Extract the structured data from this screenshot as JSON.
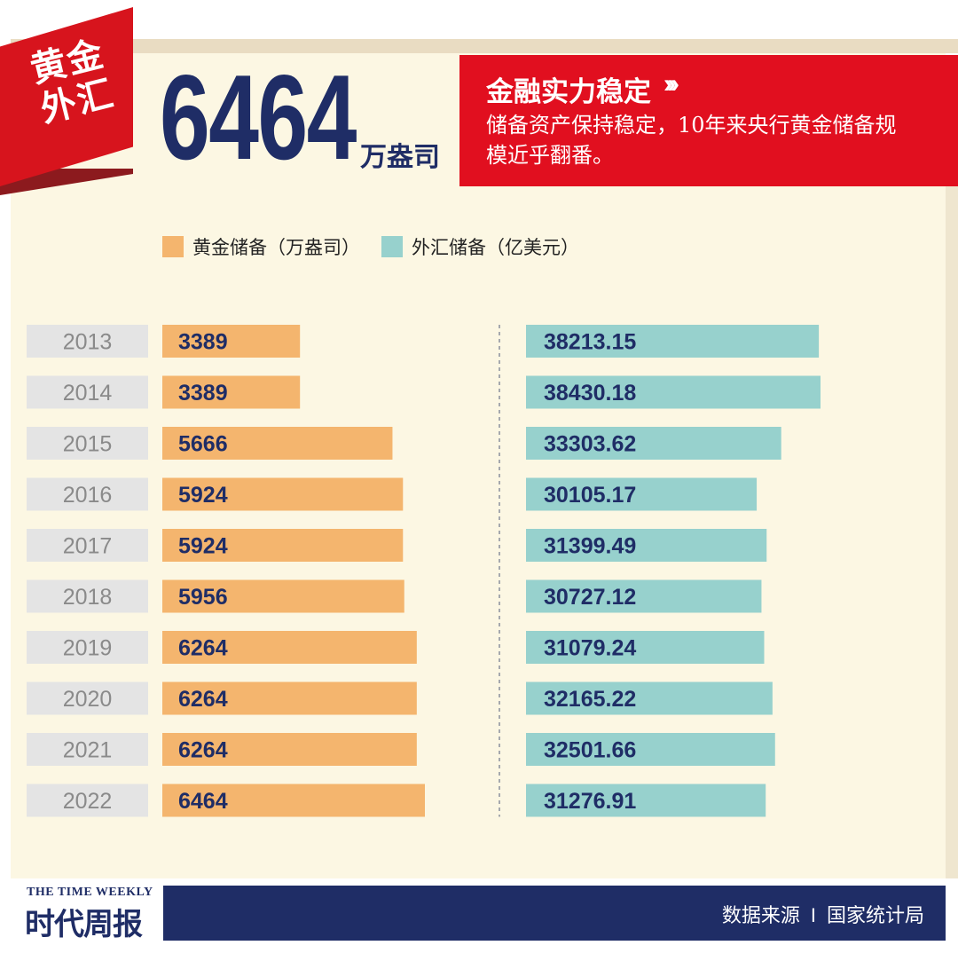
{
  "tag": {
    "line1": "黄金",
    "line2": "外汇"
  },
  "headline": {
    "value": "6464",
    "unit": "万盎司"
  },
  "header": {
    "title": "金融实力稳定",
    "arrows": "›››",
    "description": "储备资产保持稳定，10年来央行黄金储备规模近乎翻番。"
  },
  "legend": {
    "gold_label": "黄金储备（万盎司）",
    "forex_label": "外汇储备（亿美元）"
  },
  "colors": {
    "gold": "#f4b56e",
    "forex": "#97d1cd",
    "year_bg": "#e4e4e4",
    "accent_red": "#e10f1f",
    "navy": "#1f2d66"
  },
  "chart_data": {
    "type": "bar",
    "orientation": "horizontal",
    "categories": [
      "2013",
      "2014",
      "2015",
      "2016",
      "2017",
      "2018",
      "2019",
      "2020",
      "2021",
      "2022"
    ],
    "series": [
      {
        "name": "黄金储备（万盎司）",
        "values": [
          3389,
          3389,
          5666,
          5924,
          5924,
          5956,
          6264,
          6264,
          6264,
          6464
        ],
        "labels": [
          "3389",
          "3389",
          "5666",
          "5924",
          "5924",
          "5956",
          "6264",
          "6264",
          "6264",
          "6464"
        ]
      },
      {
        "name": "外汇储备（亿美元）",
        "values": [
          38213.15,
          38430.18,
          33303.62,
          30105.17,
          31399.49,
          30727.12,
          31079.24,
          32165.22,
          32501.66,
          31276.91
        ],
        "labels": [
          "38213.15",
          "38430.18",
          "33303.62",
          "30105.17",
          "31399.49",
          "30727.12",
          "31079.24",
          "32165.22",
          "32501.66",
          "31276.91"
        ]
      }
    ],
    "legend": "top"
  },
  "footer": {
    "brand_en": "THE TIME WEEKLY",
    "brand_cn": "时代周报",
    "source_label": "数据来源",
    "separator": "I",
    "source_value": "国家统计局"
  }
}
